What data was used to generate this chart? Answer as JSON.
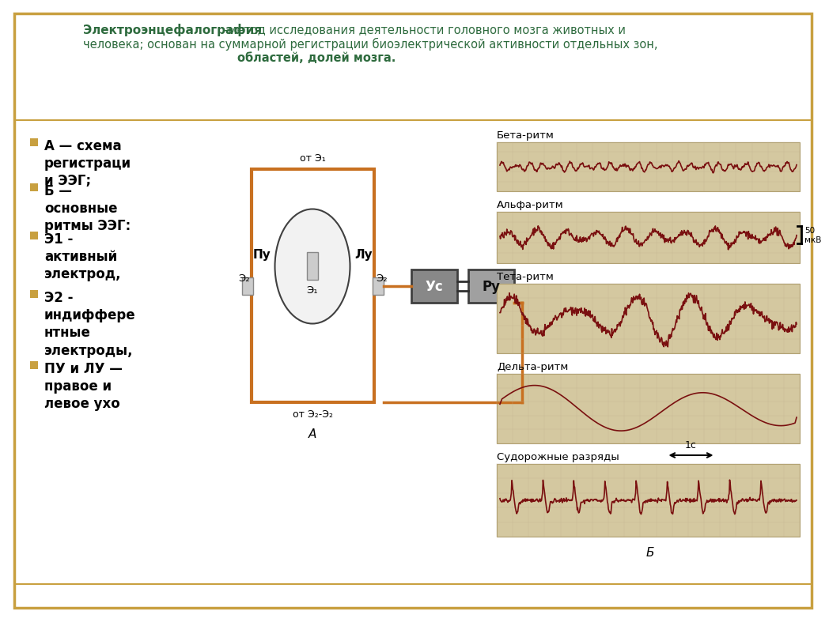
{
  "bg_color": "#ffffff",
  "border_color": "#c8a040",
  "title_bold": "Электроэнцефалография",
  "title_color": "#2e6b3e",
  "bullet_color": "#c8a040",
  "text_color": "#000000",
  "bullets": [
    "А — схема\nрегистраци\nи ЭЭГ;",
    "Б —\nосновные\nритмы ЭЭГ:",
    "Э1 -\nактивный\nэлектрод,",
    "Э2 -\nиндиффере\nнтные\nэлектроды,",
    "ПУ и ЛУ —\nправое и\nлевое ухо"
  ],
  "diagram_color": "#c87020",
  "eeg_bg": "#d4c8a0",
  "eeg_line_color": "#7a1010",
  "rhythm_labels": [
    "Бета-ритм",
    "Альфа-ритм",
    "Тета-ритм",
    "Дельта-ритм",
    "Судорожные разряды"
  ],
  "scale_label_alpha": "50\nмкВ",
  "scale_label_time": "1с",
  "label_a": "А",
  "label_b": "Б"
}
